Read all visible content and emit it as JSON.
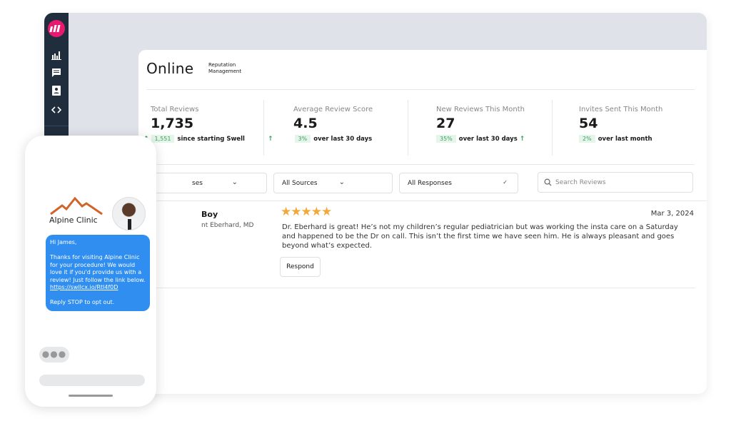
{
  "header": {
    "title": "Online",
    "subtitle_line1": "Reputation",
    "subtitle_line2": "Management"
  },
  "colors": {
    "brand": "#e8196f",
    "sidebar": "#1f2d3d",
    "message_bubble": "#2f8ef0",
    "positive": "#3aa35a",
    "star": "#f2a93b"
  },
  "sidebar": {
    "items": [
      {
        "icon": "bar-chart-icon"
      },
      {
        "icon": "message-icon"
      },
      {
        "icon": "contact-card-icon"
      },
      {
        "icon": "code-icon"
      }
    ]
  },
  "stats": [
    {
      "label": "Total Reviews",
      "value": "1,735",
      "badge": "1,551",
      "sub": "since starting Swell"
    },
    {
      "label": "Average Review Score",
      "value": "4.5",
      "badge": "3%",
      "sub": "over last 30 days"
    },
    {
      "label": "New Reviews This Month",
      "value": "27",
      "badge": "35%",
      "sub": "over last 30 days"
    },
    {
      "label": "Invites Sent This Month",
      "value": "54",
      "badge": "2%",
      "sub": "over last month"
    }
  ],
  "filters": {
    "businesses": "ses",
    "sources": "All Sources",
    "responses": "All Responses",
    "search_placeholder": "Search Reviews"
  },
  "review": {
    "name": "Boy",
    "provider": "nt Eberhard, MD",
    "rating": 5,
    "date": "Mar 3, 2024",
    "text": "Dr. Eberhard is great! He’s not my children’s regular pediatrician but was working the insta care on a Saturday and happened to be the Dr on call. This isn’t the first time we have seen him. He is always pleasant and goes beyond what’s expected.",
    "respond_label": "Respond"
  },
  "phone": {
    "clinic_name": "Alpine Clinic",
    "greeting": "Hi James,",
    "message": "Thanks for visiting Alpine Clinic for your procedure! We would love it if you'd provide us with a review! Just follow the link below.",
    "link": "https://swllcx.io/Rtl4f0D",
    "opt_out": "Reply STOP to opt out."
  }
}
